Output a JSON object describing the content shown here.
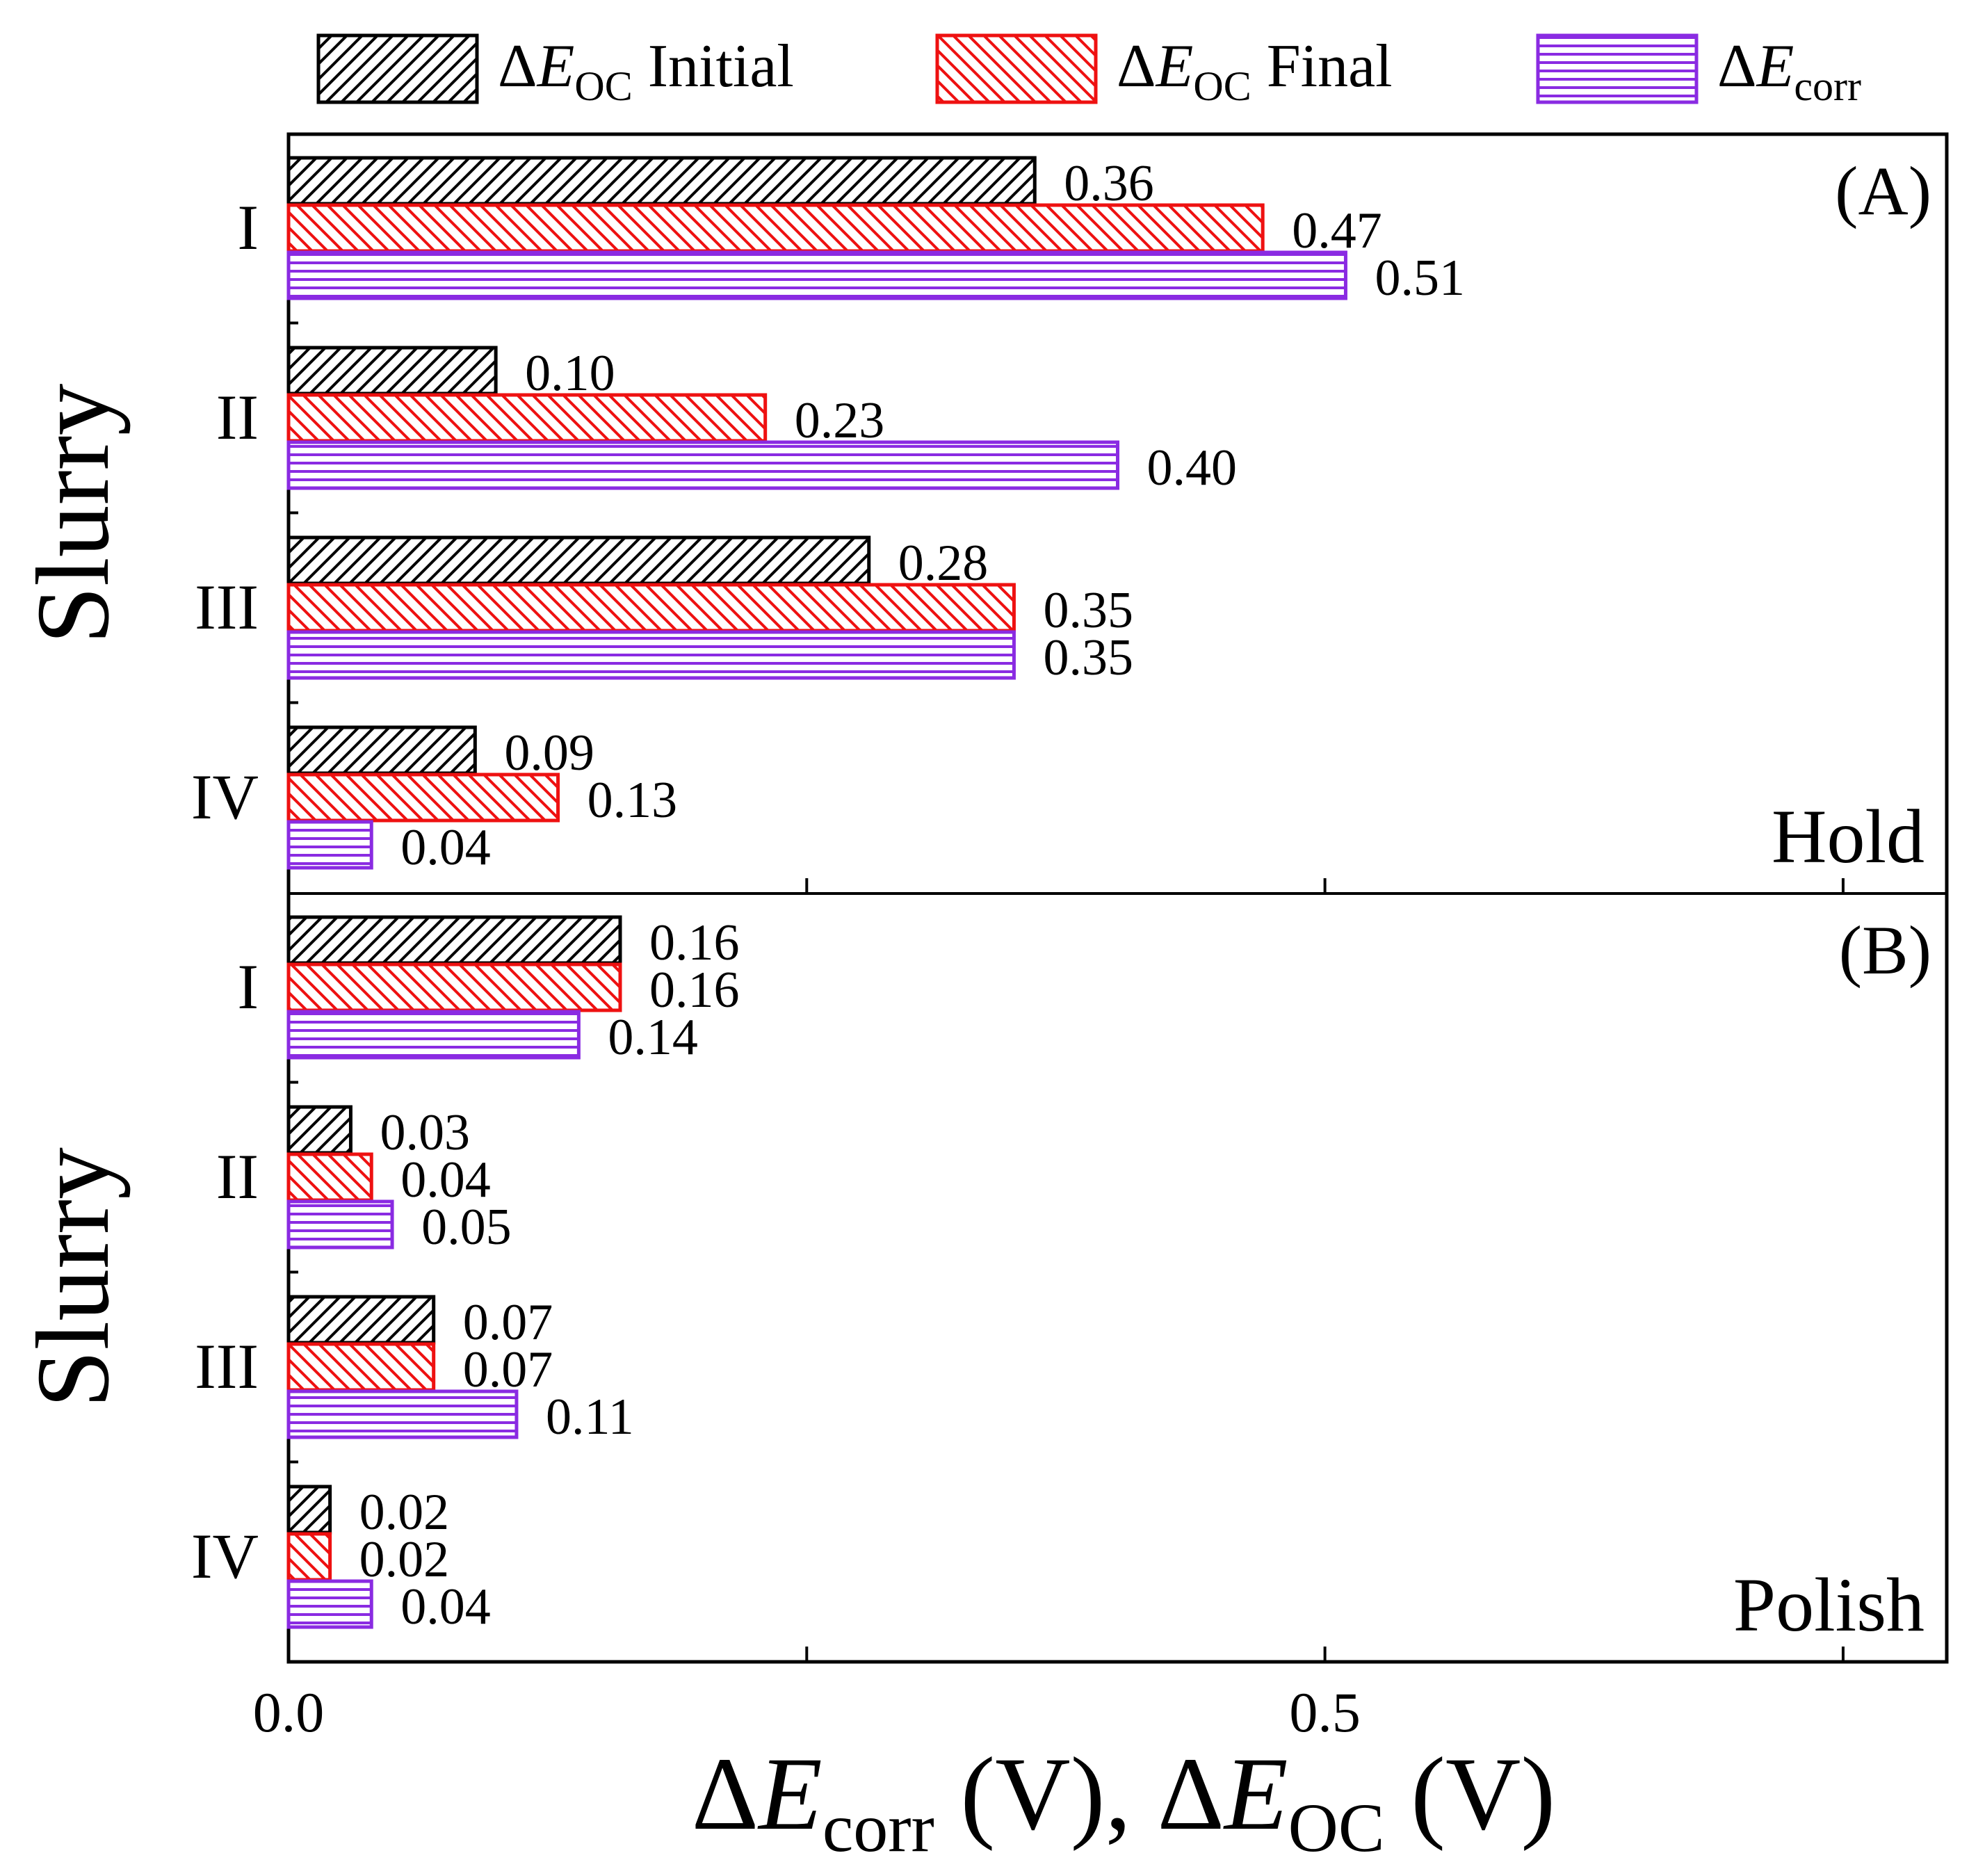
{
  "chart_data": {
    "type": "bar",
    "orientation": "horizontal",
    "legend": {
      "placement": "top",
      "entries": [
        {
          "key": "oc_initial",
          "prefix": "ΔE",
          "sub": "OC",
          "suffix": " Initial",
          "color": "#000000",
          "hatch": "diagonal-forward"
        },
        {
          "key": "oc_final",
          "prefix": "ΔE",
          "sub": "OC",
          "suffix": " Final",
          "color": "#ee1111",
          "hatch": "diagonal-back"
        },
        {
          "key": "corr",
          "prefix": "ΔE",
          "sub": "corr",
          "suffix": "",
          "color": "#8a2be2",
          "hatch": "horizontal"
        }
      ]
    },
    "xlabel": {
      "p1": "ΔE",
      "s1": "corr",
      "p2": " (V), ΔE",
      "s2": "OC",
      "p3": " (V)"
    },
    "xlim": [
      0,
      0.8
    ],
    "xticks": [
      0.0,
      0.5
    ],
    "xtick_labels": [
      "0.0",
      "0.5"
    ],
    "categories": [
      "I",
      "II",
      "III",
      "IV"
    ],
    "panels": [
      {
        "label": "(A)",
        "mode": "Hold",
        "ylabel": "Slurry",
        "series": [
          {
            "key": "oc_initial",
            "values": [
              0.36,
              0.1,
              0.28,
              0.09
            ],
            "labels": [
              "0.36",
              "0.10",
              "0.28",
              "0.09"
            ]
          },
          {
            "key": "oc_final",
            "values": [
              0.47,
              0.23,
              0.35,
              0.13
            ],
            "labels": [
              "0.47",
              "0.23",
              "0.35",
              "0.13"
            ]
          },
          {
            "key": "corr",
            "values": [
              0.51,
              0.4,
              0.35,
              0.04
            ],
            "labels": [
              "0.51",
              "0.40",
              "0.35",
              "0.04"
            ]
          }
        ]
      },
      {
        "label": "(B)",
        "mode": "Polish",
        "ylabel": "Slurry",
        "series": [
          {
            "key": "oc_initial",
            "values": [
              0.16,
              0.03,
              0.07,
              0.02
            ],
            "labels": [
              "0.16",
              "0.03",
              "0.07",
              "0.02"
            ]
          },
          {
            "key": "oc_final",
            "values": [
              0.16,
              0.04,
              0.07,
              0.02
            ],
            "labels": [
              "0.16",
              "0.04",
              "0.07",
              "0.02"
            ]
          },
          {
            "key": "corr",
            "values": [
              0.14,
              0.05,
              0.11,
              0.04
            ],
            "labels": [
              "0.14",
              "0.05",
              "0.11",
              "0.04"
            ]
          }
        ]
      }
    ],
    "grid": false
  }
}
